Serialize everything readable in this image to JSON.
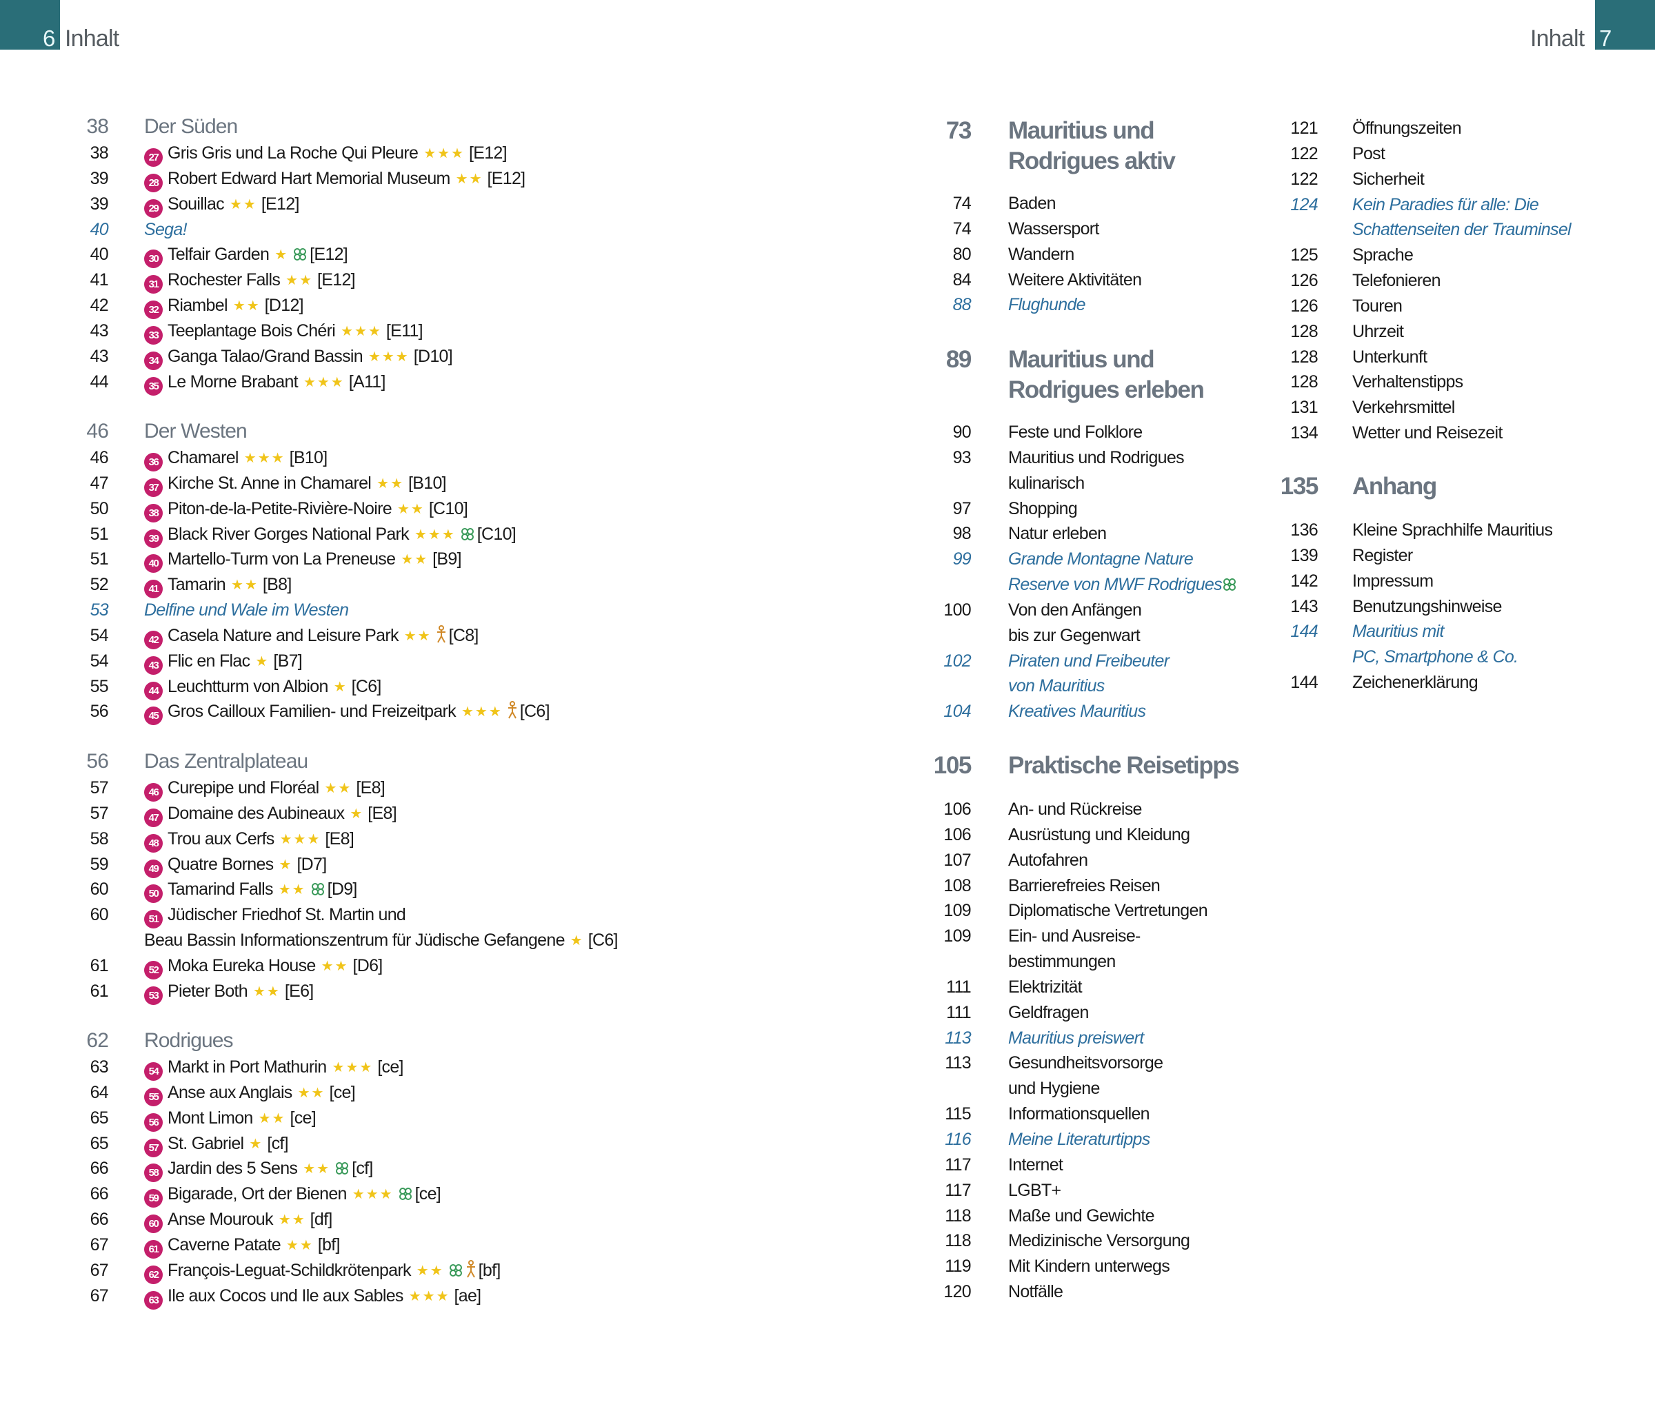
{
  "header": {
    "left_page": "6",
    "left_title": "Inhalt",
    "right_page": "7",
    "right_title": "Inhalt",
    "accent_color": "#2a6e78"
  },
  "colors": {
    "badge": "#c41f6b",
    "star": "#f0c419",
    "italic_link": "#2e6f9e",
    "heading": "#6b7580",
    "clover": "#3a9a5a",
    "kids": "#d08a2a"
  },
  "left": {
    "sections": [
      {
        "page": "38",
        "title": "Der Süden",
        "entries": [
          {
            "page": "38",
            "num": "27",
            "name": "Gris Gris und La Roche Qui Pleure",
            "stars": "★★★",
            "grid": "[E12]"
          },
          {
            "page": "39",
            "num": "28",
            "name": "Robert Edward Hart Memorial Museum",
            "stars": "★★",
            "grid": "[E12]"
          },
          {
            "page": "39",
            "num": "29",
            "name": "Souillac",
            "stars": "★★",
            "grid": "[E12]"
          },
          {
            "page": "40",
            "name": "Sega!",
            "italic": true
          },
          {
            "page": "40",
            "num": "30",
            "name": "Telfair Garden",
            "stars": "★",
            "icons": [
              "clover"
            ],
            "grid": "[E12]"
          },
          {
            "page": "41",
            "num": "31",
            "name": "Rochester Falls",
            "stars": "★★",
            "grid": "[E12]"
          },
          {
            "page": "42",
            "num": "32",
            "name": "Riambel",
            "stars": "★★",
            "grid": "[D12]"
          },
          {
            "page": "43",
            "num": "33",
            "name": "Teeplantage Bois Chéri",
            "stars": "★★★",
            "grid": "[E11]"
          },
          {
            "page": "43",
            "num": "34",
            "name": "Ganga Talao/Grand Bassin",
            "stars": "★★★",
            "grid": "[D10]"
          },
          {
            "page": "44",
            "num": "35",
            "name": "Le Morne Brabant",
            "stars": "★★★",
            "grid": "[A11]"
          }
        ]
      },
      {
        "page": "46",
        "title": "Der Westen",
        "entries": [
          {
            "page": "46",
            "num": "36",
            "name": "Chamarel",
            "stars": "★★★",
            "grid": "[B10]"
          },
          {
            "page": "47",
            "num": "37",
            "name": "Kirche St. Anne in Chamarel",
            "stars": "★★",
            "grid": "[B10]"
          },
          {
            "page": "50",
            "num": "38",
            "name": "Piton-de-la-Petite-Rivière-Noire",
            "stars": "★★",
            "grid": "[C10]"
          },
          {
            "page": "51",
            "num": "39",
            "name": "Black River Gorges National Park",
            "stars": "★★★",
            "icons": [
              "clover"
            ],
            "grid": "[C10]"
          },
          {
            "page": "51",
            "num": "40",
            "name": "Martello-Turm von La Preneuse",
            "stars": "★★",
            "grid": "[B9]"
          },
          {
            "page": "52",
            "num": "41",
            "name": "Tamarin",
            "stars": "★★",
            "grid": "[B8]"
          },
          {
            "page": "53",
            "name": "Delfine und Wale im Westen",
            "italic": true
          },
          {
            "page": "54",
            "num": "42",
            "name": "Casela Nature and Leisure Park",
            "stars": "★★",
            "icons": [
              "kids"
            ],
            "grid": "[C8]"
          },
          {
            "page": "54",
            "num": "43",
            "name": "Flic en Flac",
            "stars": "★",
            "grid": "[B7]"
          },
          {
            "page": "55",
            "num": "44",
            "name": "Leuchtturm von Albion",
            "stars": "★",
            "grid": "[C6]"
          },
          {
            "page": "56",
            "num": "45",
            "name": "Gros Cailloux Familien- und Freizeitpark",
            "stars": "★★★",
            "icons": [
              "kids"
            ],
            "grid": "[C6]"
          }
        ]
      },
      {
        "page": "56",
        "title": "Das Zentralplateau",
        "entries": [
          {
            "page": "57",
            "num": "46",
            "name": "Curepipe und Floréal",
            "stars": "★★",
            "grid": "[E8]"
          },
          {
            "page": "57",
            "num": "47",
            "name": "Domaine des Aubineaux",
            "stars": "★",
            "grid": "[E8]"
          },
          {
            "page": "58",
            "num": "48",
            "name": "Trou aux Cerfs",
            "stars": "★★★",
            "grid": "[E8]"
          },
          {
            "page": "59",
            "num": "49",
            "name": "Quatre Bornes",
            "stars": "★",
            "grid": "[D7]"
          },
          {
            "page": "60",
            "num": "50",
            "name": "Tamarind Falls",
            "stars": "★★",
            "icons": [
              "clover"
            ],
            "grid": "[D9]"
          },
          {
            "page": "60",
            "num": "51",
            "name": "Jüdischer Friedhof St. Martin und",
            "name2": "Beau Bassin Informationszentrum für Jüdische Gefangene",
            "stars": "★",
            "grid": "[C6]"
          },
          {
            "page": "61",
            "num": "52",
            "name": "Moka Eureka House",
            "stars": "★★",
            "grid": "[D6]"
          },
          {
            "page": "61",
            "num": "53",
            "name": "Pieter Both",
            "stars": "★★",
            "grid": "[E6]"
          }
        ]
      },
      {
        "page": "62",
        "title": "Rodrigues",
        "entries": [
          {
            "page": "63",
            "num": "54",
            "name": "Markt in Port Mathurin",
            "stars": "★★★",
            "grid": "[ce]"
          },
          {
            "page": "64",
            "num": "55",
            "name": "Anse aux Anglais",
            "stars": "★★",
            "grid": "[ce]"
          },
          {
            "page": "65",
            "num": "56",
            "name": "Mont Limon",
            "stars": "★★",
            "grid": "[ce]"
          },
          {
            "page": "65",
            "num": "57",
            "name": "St. Gabriel",
            "stars": "★",
            "grid": "[cf]"
          },
          {
            "page": "66",
            "num": "58",
            "name": "Jardin des 5 Sens",
            "stars": "★★",
            "icons": [
              "clover"
            ],
            "grid": "[cf]"
          },
          {
            "page": "66",
            "num": "59",
            "name": "Bigarade, Ort der Bienen",
            "stars": "★★★",
            "icons": [
              "clover"
            ],
            "grid": "[ce]"
          },
          {
            "page": "66",
            "num": "60",
            "name": "Anse Mourouk",
            "stars": "★★",
            "grid": "[df]"
          },
          {
            "page": "67",
            "num": "61",
            "name": "Caverne Patate",
            "stars": "★★",
            "grid": "[bf]"
          },
          {
            "page": "67",
            "num": "62",
            "name": "François-Leguat-Schildkrötenpark",
            "stars": "★★",
            "icons": [
              "clover",
              "kids"
            ],
            "grid": "[bf]"
          },
          {
            "page": "67",
            "num": "63",
            "name": "Ile aux Cocos und Ile aux Sables",
            "stars": "★★★",
            "grid": "[ae]"
          }
        ]
      }
    ]
  },
  "middle": {
    "sections": [
      {
        "page": "73",
        "title": "Mauritius und",
        "title2": "Rodrigues aktiv",
        "entries": [
          {
            "page": "74",
            "title": "Baden"
          },
          {
            "page": "74",
            "title": "Wassersport"
          },
          {
            "page": "80",
            "title": "Wandern"
          },
          {
            "page": "84",
            "title": "Weitere Aktivitäten"
          },
          {
            "page": "88",
            "title": "Flughunde",
            "italic": true
          }
        ]
      },
      {
        "page": "89",
        "title": "Mauritius und",
        "title2": "Rodrigues erleben",
        "entries": [
          {
            "page": "90",
            "title": "Feste und Folklore"
          },
          {
            "page": "93",
            "title": "Mauritius und Rodrigues",
            "title2": "kulinarisch"
          },
          {
            "page": "97",
            "title": "Shopping"
          },
          {
            "page": "98",
            "title": "Natur erleben"
          },
          {
            "page": "99",
            "title": "Grande Montagne Nature",
            "title2": "Reserve von MWF Rodrigues",
            "italic": true,
            "icons": [
              "clover"
            ]
          },
          {
            "page": "100",
            "title": "Von den Anfängen",
            "title2": "bis zur Gegenwart"
          },
          {
            "page": "102",
            "title": "Piraten und Freibeuter",
            "title2": "von Mauritius",
            "italic": true
          },
          {
            "page": "104",
            "title": "Kreatives Mauritius",
            "italic": true
          }
        ]
      },
      {
        "page": "105",
        "title": "Praktische Reisetipps",
        "entries": [
          {
            "page": "106",
            "title": "An- und Rückreise"
          },
          {
            "page": "106",
            "title": "Ausrüstung und Kleidung"
          },
          {
            "page": "107",
            "title": "Autofahren"
          },
          {
            "page": "108",
            "title": "Barrierefreies Reisen"
          },
          {
            "page": "109",
            "title": "Diplomatische Vertretungen"
          },
          {
            "page": "109",
            "title": "Ein- und Ausreise-",
            "title2": "bestimmungen"
          },
          {
            "page": "111",
            "title": "Elektrizität"
          },
          {
            "page": "111",
            "title": "Geldfragen"
          },
          {
            "page": "113",
            "title": "Mauritius preiswert",
            "italic": true
          },
          {
            "page": "113",
            "title": "Gesundheitsvorsorge",
            "title2": "und Hygiene"
          },
          {
            "page": "115",
            "title": "Informationsquellen"
          },
          {
            "page": "116",
            "title": "Meine Literaturtipps",
            "italic": true
          },
          {
            "page": "117",
            "title": "Internet"
          },
          {
            "page": "117",
            "title": "LGBT+"
          },
          {
            "page": "118",
            "title": "Maße und Gewichte"
          },
          {
            "page": "118",
            "title": "Medizinische Versorgung"
          },
          {
            "page": "119",
            "title": "Mit Kindern unterwegs"
          },
          {
            "page": "120",
            "title": "Notfälle"
          }
        ]
      }
    ]
  },
  "right": {
    "sections": [
      {
        "entries": [
          {
            "page": "121",
            "title": "Öffnungszeiten"
          },
          {
            "page": "122",
            "title": "Post"
          },
          {
            "page": "122",
            "title": "Sicherheit"
          },
          {
            "page": "124",
            "title": "Kein Paradies für alle: Die",
            "title2": "Schattenseiten der Trauminsel",
            "italic": true
          },
          {
            "page": "125",
            "title": "Sprache"
          },
          {
            "page": "126",
            "title": "Telefonieren"
          },
          {
            "page": "126",
            "title": "Touren"
          },
          {
            "page": "128",
            "title": "Uhrzeit"
          },
          {
            "page": "128",
            "title": "Unterkunft"
          },
          {
            "page": "128",
            "title": "Verhaltenstipps"
          },
          {
            "page": "131",
            "title": "Verkehrsmittel"
          },
          {
            "page": "134",
            "title": "Wetter und Reisezeit"
          }
        ]
      },
      {
        "page": "135",
        "title": "Anhang",
        "entries": [
          {
            "page": "136",
            "title": "Kleine Sprachhilfe Mauritius"
          },
          {
            "page": "139",
            "title": "Register"
          },
          {
            "page": "142",
            "title": "Impressum"
          },
          {
            "page": "143",
            "title": "Benutzungshinweise"
          },
          {
            "page": "144",
            "title": "Mauritius mit",
            "title2": "PC, Smartphone & Co.",
            "italic": true
          },
          {
            "page": "144",
            "title": "Zeichenerklärung"
          }
        ]
      }
    ]
  }
}
